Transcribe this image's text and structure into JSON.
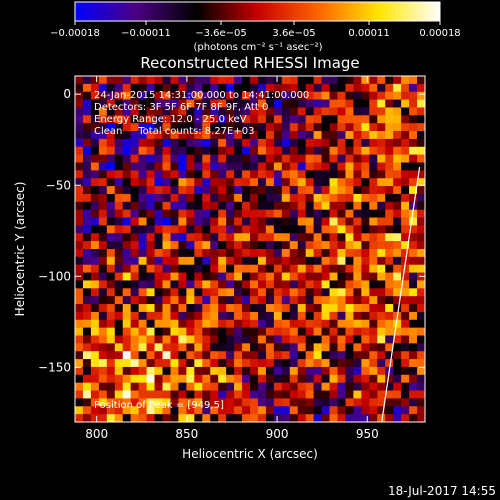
{
  "chart_data": {
    "type": "heatmap",
    "title": "Reconstructed RHESSI Image",
    "xlabel": "Heliocentric X (arcsec)",
    "ylabel": "Heliocentric Y (arcsec)",
    "xlim": [
      788,
      982
    ],
    "ylim": [
      -180,
      10
    ],
    "xticks": [
      800,
      850,
      900,
      950
    ],
    "xtick_labels": [
      "800",
      "850",
      "900",
      "950"
    ],
    "yticks": [
      0,
      -50,
      -100,
      -150
    ],
    "ytick_labels": [
      "0",
      "−50",
      "−100",
      "−150"
    ],
    "colorbar": {
      "label": "(photons cm⁻² s⁻¹ asec⁻²)",
      "range": [
        -0.00018,
        0.00018
      ],
      "tick_values": [
        -0.00018,
        -0.00011,
        -3.6e-05,
        3.6e-05,
        0.00011,
        0.00018
      ],
      "tick_labels": [
        "−0.00018",
        "−0.00011",
        "−3.6e−05",
        "3.6e−05",
        "0.00011",
        "0.00018"
      ],
      "colors": [
        "#0000ff",
        "#4b0082",
        "#000000",
        "#c80000",
        "#ff6400",
        "#ffe600",
        "#ffffff"
      ]
    },
    "annotations": [
      "24-Jan-2015 14:31:00.000 to 14:41:00.000",
      "Detectors: 3F 5F 6F 7F 8F 9F, Att 0",
      "Energy Range: 12.0 - 25.0 keV",
      "Clean     Total counts: 8.27E+03"
    ],
    "peak_label": "Position of Peak = [949,5]",
    "limb_line": [
      [
        958,
        -180
      ],
      [
        979,
        -40
      ]
    ],
    "grid": false
  },
  "footer": {
    "date": "18-Jul-2017 14:55"
  }
}
